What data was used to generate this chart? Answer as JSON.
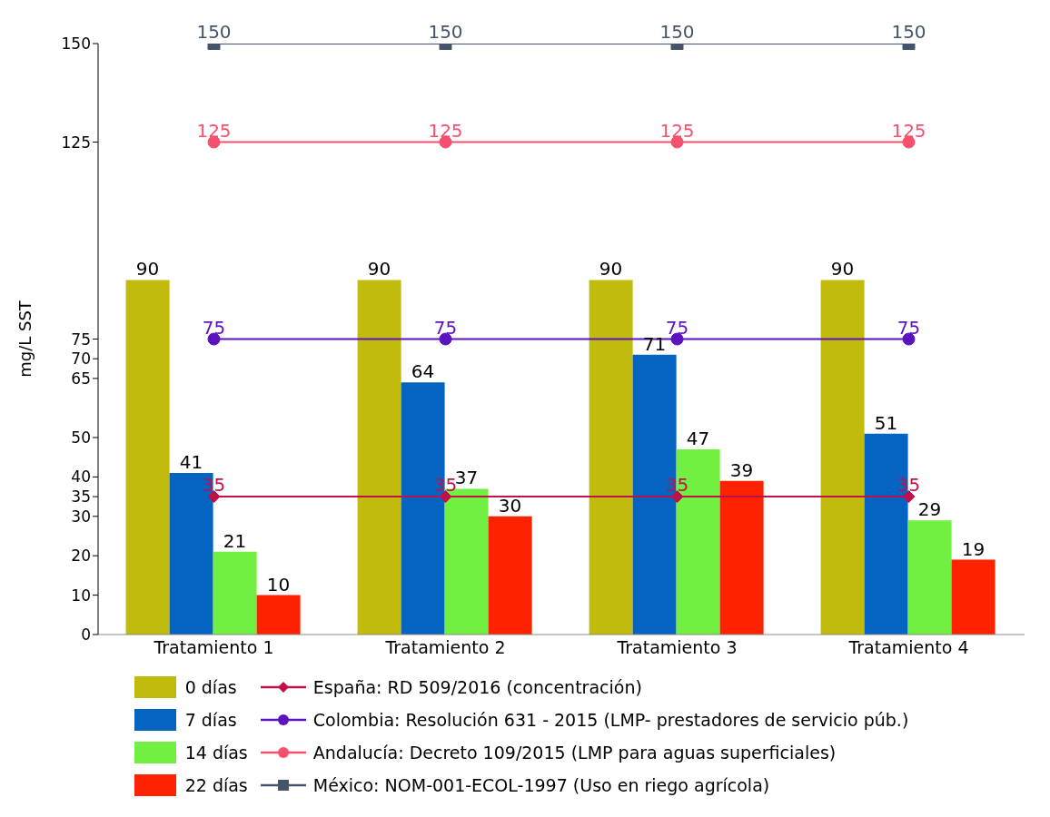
{
  "chart_data": {
    "type": "bar",
    "ylabel": "mg/L SST",
    "categories": [
      "Tratamiento 1",
      "Tratamiento 2",
      "Tratamiento 3",
      "Tratamiento 4"
    ],
    "series": [
      {
        "name": "0 días",
        "color": "#c0bb0c",
        "values": [
          90,
          90,
          90,
          90
        ]
      },
      {
        "name": "7 días",
        "color": "#0563c1",
        "values": [
          41,
          64,
          71,
          51
        ]
      },
      {
        "name": "14 días",
        "color": "#71f041",
        "values": [
          21,
          37,
          47,
          29
        ]
      },
      {
        "name": "22 días",
        "color": "#ff2200",
        "values": [
          10,
          30,
          39,
          19
        ]
      },
      {
        "name": "España: RD 509/2016 (concentración)",
        "type": "line",
        "marker": "diamond",
        "color": "#c0104a",
        "values": [
          35,
          35,
          35,
          35
        ]
      },
      {
        "name": "Colombia: Resolución 631 - 2015 (LMP- prestadores de servicio púb.)",
        "type": "line",
        "marker": "circle",
        "color": "#5b12bf",
        "values": [
          75,
          75,
          75,
          75
        ]
      },
      {
        "name": "Andalucía: Decreto 109/2015 (LMP para aguas superficiales)",
        "type": "line",
        "marker": "circle",
        "color": "#f5506e",
        "values": [
          125,
          125,
          125,
          125
        ]
      },
      {
        "name": "México: NOM-001-ECOL-1997 (Uso en riego agrícola)",
        "type": "line",
        "marker": "square",
        "color": "#44546a",
        "values": [
          150,
          150,
          150,
          150
        ]
      }
    ],
    "ylim": [
      0,
      150
    ],
    "yticks": [
      0,
      10,
      20,
      30,
      35,
      40,
      50,
      65,
      70,
      75,
      125,
      150
    ],
    "data_labels": true,
    "grid": false,
    "legend": "bottom"
  }
}
